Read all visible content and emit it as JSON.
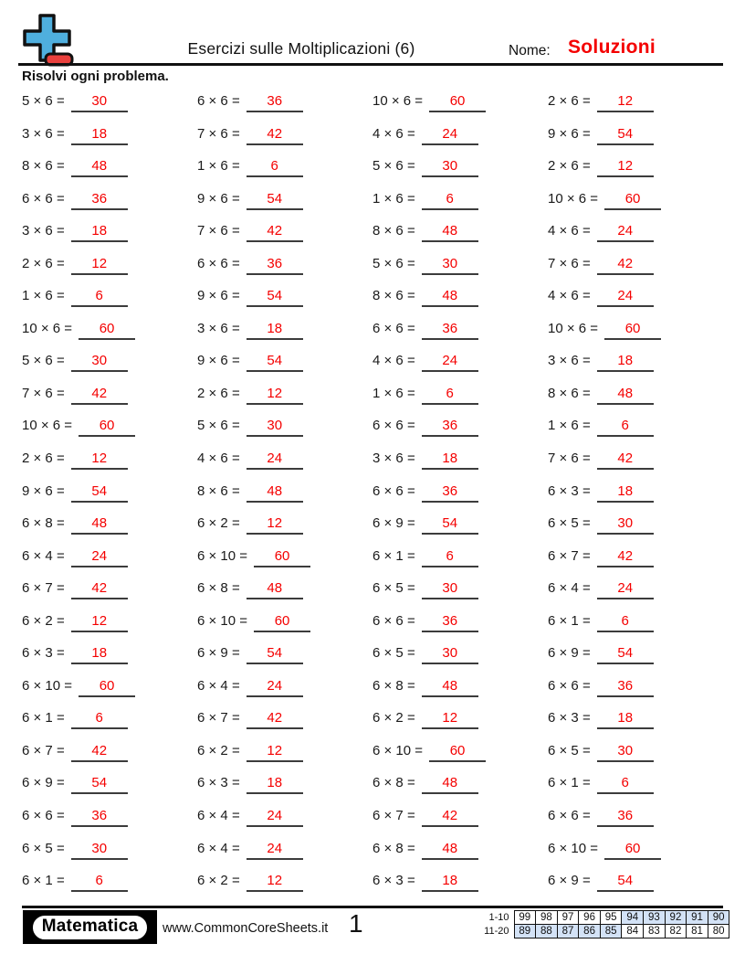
{
  "header": {
    "title": "Esercizi sulle Moltiplicazioni (6)",
    "name_label": "Nome:",
    "name_value": "Soluzioni",
    "instructions": "Risolvi ogni problema."
  },
  "colors": {
    "answer_red": "#f40000",
    "score_highlight": "#d3e2f6",
    "logo_plus_blue": "#4fafde",
    "logo_minus_red": "#e9413e"
  },
  "problems": {
    "columns": [
      [
        {
          "q": "5 × 6 =",
          "a": "30"
        },
        {
          "q": "3 × 6 =",
          "a": "18"
        },
        {
          "q": "8 × 6 =",
          "a": "48"
        },
        {
          "q": "6 × 6 =",
          "a": "36"
        },
        {
          "q": "3 × 6 =",
          "a": "18"
        },
        {
          "q": "2 × 6 =",
          "a": "12"
        },
        {
          "q": "1 × 6 =",
          "a": "6"
        },
        {
          "q": "10 × 6 =",
          "a": "60"
        },
        {
          "q": "5 × 6 =",
          "a": "30"
        },
        {
          "q": "7 × 6 =",
          "a": "42"
        },
        {
          "q": "10 × 6 =",
          "a": "60"
        },
        {
          "q": "2 × 6 =",
          "a": "12"
        },
        {
          "q": "9 × 6 =",
          "a": "54"
        },
        {
          "q": "6 × 8 =",
          "a": "48"
        },
        {
          "q": "6 × 4 =",
          "a": "24"
        },
        {
          "q": "6 × 7 =",
          "a": "42"
        },
        {
          "q": "6 × 2 =",
          "a": "12"
        },
        {
          "q": "6 × 3 =",
          "a": "18"
        },
        {
          "q": "6 × 10 =",
          "a": "60"
        },
        {
          "q": "6 × 1 =",
          "a": "6"
        },
        {
          "q": "6 × 7 =",
          "a": "42"
        },
        {
          "q": "6 × 9 =",
          "a": "54"
        },
        {
          "q": "6 × 6 =",
          "a": "36"
        },
        {
          "q": "6 × 5 =",
          "a": "30"
        },
        {
          "q": "6 × 1 =",
          "a": "6"
        }
      ],
      [
        {
          "q": "6 × 6 =",
          "a": "36"
        },
        {
          "q": "7 × 6 =",
          "a": "42"
        },
        {
          "q": "1 × 6 =",
          "a": "6"
        },
        {
          "q": "9 × 6 =",
          "a": "54"
        },
        {
          "q": "7 × 6 =",
          "a": "42"
        },
        {
          "q": "6 × 6 =",
          "a": "36"
        },
        {
          "q": "9 × 6 =",
          "a": "54"
        },
        {
          "q": "3 × 6 =",
          "a": "18"
        },
        {
          "q": "9 × 6 =",
          "a": "54"
        },
        {
          "q": "2 × 6 =",
          "a": "12"
        },
        {
          "q": "5 × 6 =",
          "a": "30"
        },
        {
          "q": "4 × 6 =",
          "a": "24"
        },
        {
          "q": "8 × 6 =",
          "a": "48"
        },
        {
          "q": "6 × 2 =",
          "a": "12"
        },
        {
          "q": "6 × 10 =",
          "a": "60"
        },
        {
          "q": "6 × 8 =",
          "a": "48"
        },
        {
          "q": "6 × 10 =",
          "a": "60"
        },
        {
          "q": "6 × 9 =",
          "a": "54"
        },
        {
          "q": "6 × 4 =",
          "a": "24"
        },
        {
          "q": "6 × 7 =",
          "a": "42"
        },
        {
          "q": "6 × 2 =",
          "a": "12"
        },
        {
          "q": "6 × 3 =",
          "a": "18"
        },
        {
          "q": "6 × 4 =",
          "a": "24"
        },
        {
          "q": "6 × 4 =",
          "a": "24"
        },
        {
          "q": "6 × 2 =",
          "a": "12"
        }
      ],
      [
        {
          "q": "10 × 6 =",
          "a": "60"
        },
        {
          "q": "4 × 6 =",
          "a": "24"
        },
        {
          "q": "5 × 6 =",
          "a": "30"
        },
        {
          "q": "1 × 6 =",
          "a": "6"
        },
        {
          "q": "8 × 6 =",
          "a": "48"
        },
        {
          "q": "5 × 6 =",
          "a": "30"
        },
        {
          "q": "8 × 6 =",
          "a": "48"
        },
        {
          "q": "6 × 6 =",
          "a": "36"
        },
        {
          "q": "4 × 6 =",
          "a": "24"
        },
        {
          "q": "1 × 6 =",
          "a": "6"
        },
        {
          "q": "6 × 6 =",
          "a": "36"
        },
        {
          "q": "3 × 6 =",
          "a": "18"
        },
        {
          "q": "6 × 6 =",
          "a": "36"
        },
        {
          "q": "6 × 9 =",
          "a": "54"
        },
        {
          "q": "6 × 1 =",
          "a": "6"
        },
        {
          "q": "6 × 5 =",
          "a": "30"
        },
        {
          "q": "6 × 6 =",
          "a": "36"
        },
        {
          "q": "6 × 5 =",
          "a": "30"
        },
        {
          "q": "6 × 8 =",
          "a": "48"
        },
        {
          "q": "6 × 2 =",
          "a": "12"
        },
        {
          "q": "6 × 10 =",
          "a": "60"
        },
        {
          "q": "6 × 8 =",
          "a": "48"
        },
        {
          "q": "6 × 7 =",
          "a": "42"
        },
        {
          "q": "6 × 8 =",
          "a": "48"
        },
        {
          "q": "6 × 3 =",
          "a": "18"
        }
      ],
      [
        {
          "q": "2 × 6 =",
          "a": "12"
        },
        {
          "q": "9 × 6 =",
          "a": "54"
        },
        {
          "q": "2 × 6 =",
          "a": "12"
        },
        {
          "q": "10 × 6 =",
          "a": "60"
        },
        {
          "q": "4 × 6 =",
          "a": "24"
        },
        {
          "q": "7 × 6 =",
          "a": "42"
        },
        {
          "q": "4 × 6 =",
          "a": "24"
        },
        {
          "q": "10 × 6 =",
          "a": "60"
        },
        {
          "q": "3 × 6 =",
          "a": "18"
        },
        {
          "q": "8 × 6 =",
          "a": "48"
        },
        {
          "q": "1 × 6 =",
          "a": "6"
        },
        {
          "q": "7 × 6 =",
          "a": "42"
        },
        {
          "q": "6 × 3 =",
          "a": "18"
        },
        {
          "q": "6 × 5 =",
          "a": "30"
        },
        {
          "q": "6 × 7 =",
          "a": "42"
        },
        {
          "q": "6 × 4 =",
          "a": "24"
        },
        {
          "q": "6 × 1 =",
          "a": "6"
        },
        {
          "q": "6 × 9 =",
          "a": "54"
        },
        {
          "q": "6 × 6 =",
          "a": "36"
        },
        {
          "q": "6 × 3 =",
          "a": "18"
        },
        {
          "q": "6 × 5 =",
          "a": "30"
        },
        {
          "q": "6 × 1 =",
          "a": "6"
        },
        {
          "q": "6 × 6 =",
          "a": "36"
        },
        {
          "q": "6 × 10 =",
          "a": "60"
        },
        {
          "q": "6 × 9 =",
          "a": "54"
        }
      ]
    ]
  },
  "footer": {
    "brand": "Matematica",
    "website": "www.CommonCoreSheets.it",
    "page_number": "1",
    "score_table": {
      "rows": [
        {
          "label": "1-10",
          "cells": [
            {
              "v": "99",
              "hl": false
            },
            {
              "v": "98",
              "hl": false
            },
            {
              "v": "97",
              "hl": false
            },
            {
              "v": "96",
              "hl": false
            },
            {
              "v": "95",
              "hl": false
            },
            {
              "v": "94",
              "hl": true
            },
            {
              "v": "93",
              "hl": true
            },
            {
              "v": "92",
              "hl": true
            },
            {
              "v": "91",
              "hl": true
            },
            {
              "v": "90",
              "hl": true
            }
          ]
        },
        {
          "label": "11-20",
          "cells": [
            {
              "v": "89",
              "hl": true
            },
            {
              "v": "88",
              "hl": true
            },
            {
              "v": "87",
              "hl": true
            },
            {
              "v": "86",
              "hl": true
            },
            {
              "v": "85",
              "hl": true
            },
            {
              "v": "84",
              "hl": false
            },
            {
              "v": "83",
              "hl": false
            },
            {
              "v": "82",
              "hl": false
            },
            {
              "v": "81",
              "hl": false
            },
            {
              "v": "80",
              "hl": false
            }
          ]
        }
      ]
    }
  }
}
